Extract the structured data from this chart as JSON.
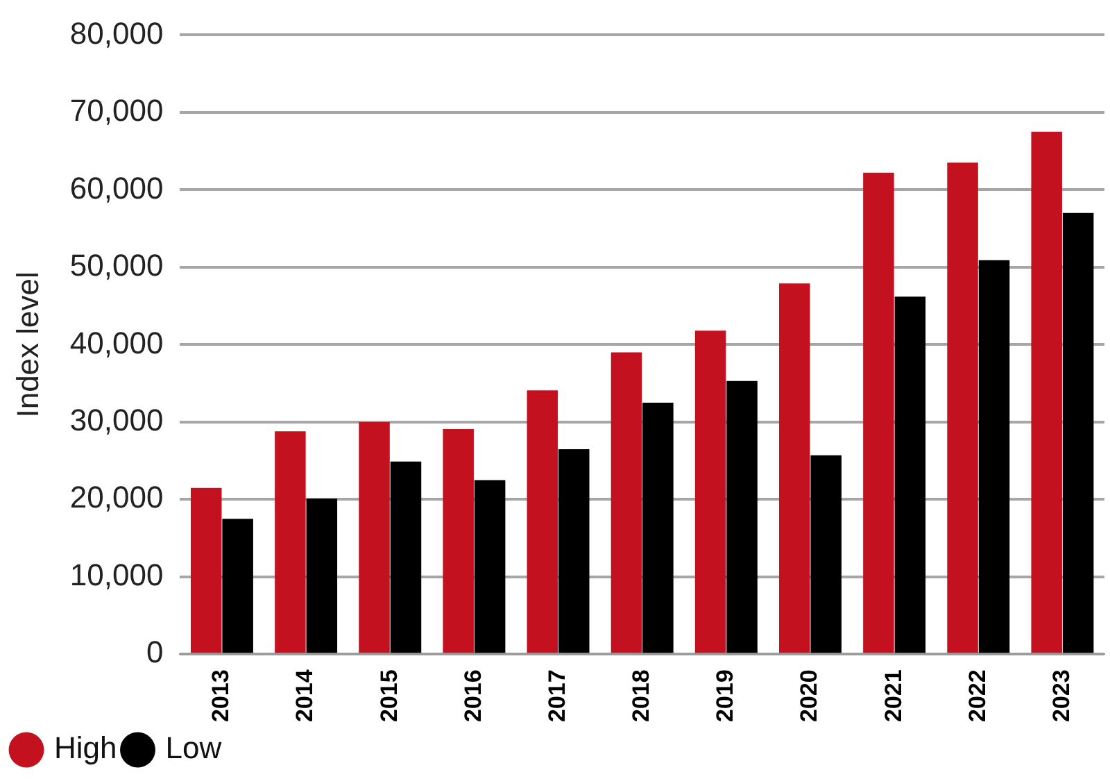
{
  "chart_data": {
    "type": "bar",
    "ylabel": "Index level",
    "categories": [
      "2013",
      "2014",
      "2015",
      "2016",
      "2017",
      "2018",
      "2019",
      "2020",
      "2021",
      "2022",
      "2023"
    ],
    "series": [
      {
        "name": "High",
        "color": "#c3111f",
        "values": [
          21500,
          28800,
          30000,
          29100,
          34100,
          39000,
          41800,
          47900,
          62200,
          63500,
          67500
        ]
      },
      {
        "name": "Low",
        "color": "#000000",
        "values": [
          17500,
          20100,
          24900,
          22500,
          26500,
          32500,
          35300,
          25700,
          46200,
          50900,
          57000
        ]
      }
    ],
    "ylim": [
      0,
      80000
    ],
    "yticks": [
      {
        "value": 0,
        "label": "0"
      },
      {
        "value": 10000,
        "label": "10,000"
      },
      {
        "value": 20000,
        "label": "20,000"
      },
      {
        "value": 30000,
        "label": "30,000"
      },
      {
        "value": 40000,
        "label": "40,000"
      },
      {
        "value": 50000,
        "label": "50,000"
      },
      {
        "value": 60000,
        "label": "60,000"
      },
      {
        "value": 70000,
        "label": "70,000"
      },
      {
        "value": 80000,
        "label": "80,000"
      }
    ],
    "grid": "y",
    "legend": "bottom left"
  }
}
